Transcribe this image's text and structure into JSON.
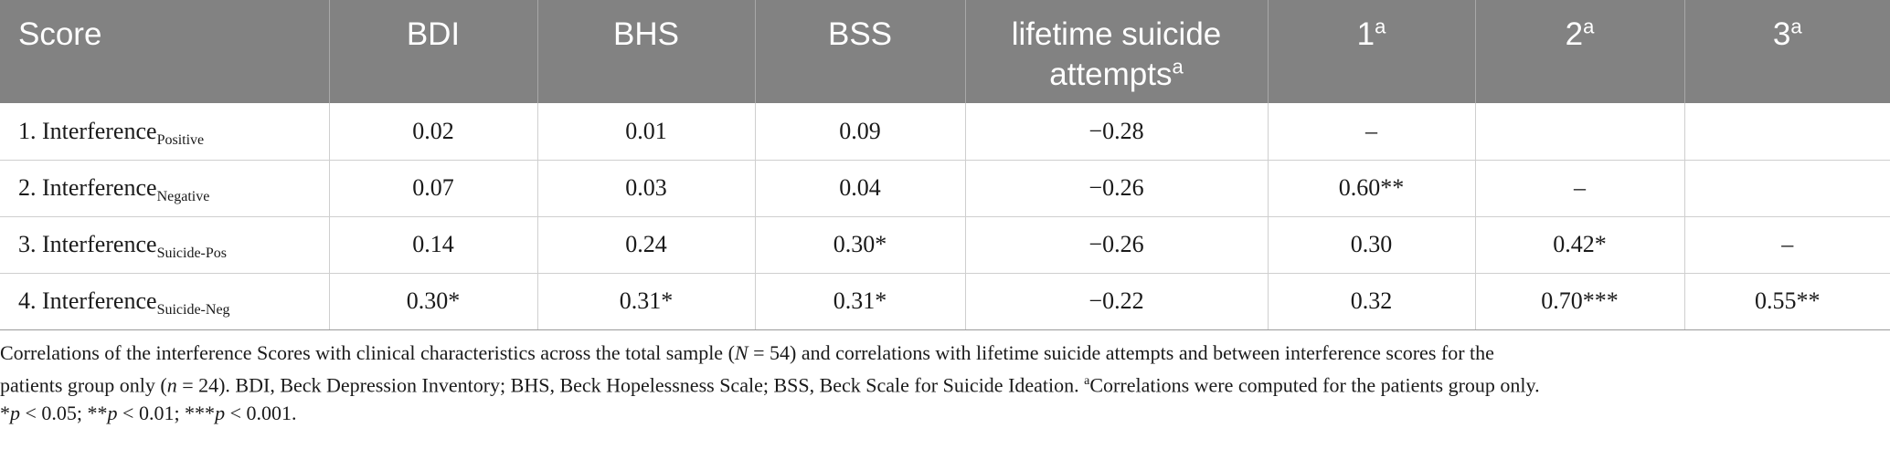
{
  "table": {
    "headers": [
      {
        "label": "Score",
        "sup": ""
      },
      {
        "label": "BDI",
        "sup": ""
      },
      {
        "label": "BHS",
        "sup": ""
      },
      {
        "label": "BSS",
        "sup": ""
      },
      {
        "label": "lifetime suicide attempts",
        "sup": "a"
      },
      {
        "label": "1",
        "sup": "a"
      },
      {
        "label": "2",
        "sup": "a"
      },
      {
        "label": "3",
        "sup": "a"
      }
    ],
    "rows": [
      {
        "label": "1. Interference",
        "sub": "Positive",
        "cells": [
          "0.02",
          "0.01",
          "0.09",
          "−0.28",
          "–",
          "",
          ""
        ]
      },
      {
        "label": "2. Interference",
        "sub": "Negative",
        "cells": [
          "0.07",
          "0.03",
          "0.04",
          "−0.26",
          "0.60**",
          "–",
          ""
        ]
      },
      {
        "label": "3. Interference",
        "sub": "Suicide-Pos",
        "cells": [
          "0.14",
          "0.24",
          "0.30*",
          "−0.26",
          "0.30",
          "0.42*",
          "–"
        ]
      },
      {
        "label": "4. Interference",
        "sub": "Suicide-Neg",
        "cells": [
          "0.30*",
          "0.31*",
          "0.31*",
          "−0.22",
          "0.32",
          "0.70***",
          "0.55**"
        ]
      }
    ]
  },
  "caption": {
    "line1_a": "Correlations of the interference Scores with clinical characteristics across the total sample (",
    "line1_N": "N",
    "line1_b": " = 54) and correlations with lifetime suicide attempts and between interference scores for the",
    "line2_a": "patients group only (",
    "line2_n": "n",
    "line2_b": " = 24). BDI, Beck Depression Inventory; BHS, Beck Hopelessness Scale; BSS, Beck Scale for Suicide Ideation. ",
    "line2_sup": "a",
    "line2_c": "Correlations were computed for the patients group only.",
    "line3_a": "*",
    "line3_p1": "p",
    "line3_b": " < 0.05; **",
    "line3_p2": "p",
    "line3_c": " < 0.01; ***",
    "line3_p3": "p",
    "line3_d": " < 0.001."
  }
}
